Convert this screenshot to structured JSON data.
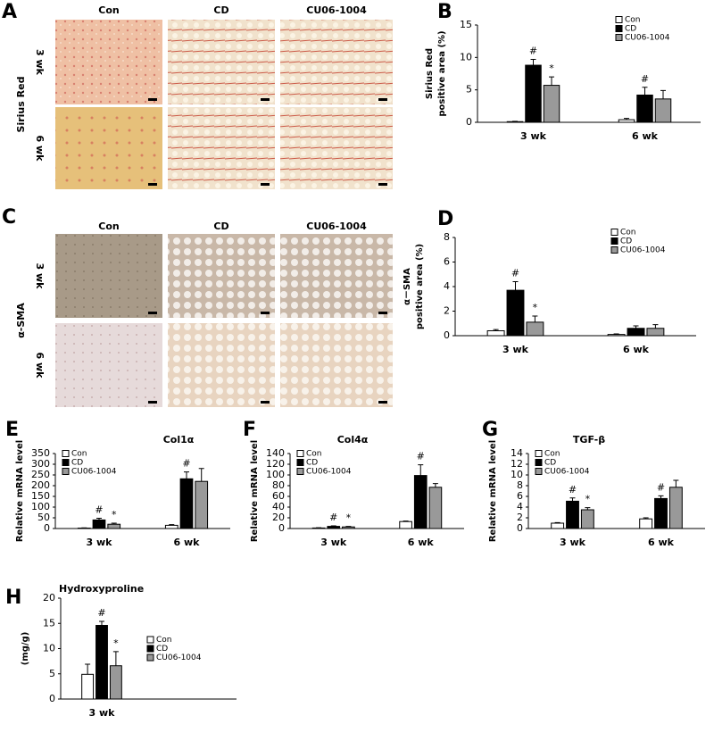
{
  "micrographs": [
    {
      "letter": "A",
      "stain": "Sirius Red",
      "columns": [
        "Con",
        "CD",
        "CU06-1004"
      ],
      "rows": [
        "3 wk",
        "6 wk"
      ]
    },
    {
      "letter": "C",
      "stain": "α-SMA",
      "columns": [
        "Con",
        "CD",
        "CU06-1004"
      ],
      "rows": [
        "3 wk",
        "6 wk"
      ]
    }
  ],
  "chart_data": [
    {
      "type": "bar",
      "letter": "B",
      "y_label": [
        "Sirius Red",
        "positive area (%)"
      ],
      "categories": [
        "3 wk",
        "6 wk"
      ],
      "ylim": [
        0,
        15
      ],
      "yticks": [
        0,
        5,
        10,
        15
      ],
      "legend": "upper right",
      "series": [
        {
          "name": "Con",
          "color": "#ffffff",
          "values": [
            0.1,
            0.4
          ],
          "errors": [
            0.05,
            0.2
          ],
          "markers": [
            null,
            null
          ]
        },
        {
          "name": "CD",
          "color": "#000000",
          "values": [
            8.8,
            4.2
          ],
          "errors": [
            0.9,
            1.2
          ],
          "markers": [
            "#",
            "#"
          ]
        },
        {
          "name": "CU06-1004",
          "color": "#999999",
          "values": [
            5.7,
            3.6
          ],
          "errors": [
            1.3,
            1.3
          ],
          "markers": [
            "*",
            null
          ]
        }
      ]
    },
    {
      "type": "bar",
      "letter": "D",
      "y_label": [
        "α－SMA",
        "positive area (%)"
      ],
      "categories": [
        "3 wk",
        "6 wk"
      ],
      "ylim": [
        0,
        8
      ],
      "yticks": [
        0,
        2,
        4,
        6,
        8
      ],
      "legend": "upper right",
      "series": [
        {
          "name": "Con",
          "color": "#ffffff",
          "values": [
            0.4,
            0.1
          ],
          "errors": [
            0.1,
            0.05
          ],
          "markers": [
            null,
            null
          ]
        },
        {
          "name": "CD",
          "color": "#000000",
          "values": [
            3.7,
            0.6
          ],
          "errors": [
            0.7,
            0.2
          ],
          "markers": [
            "#",
            null
          ]
        },
        {
          "name": "CU06-1004",
          "color": "#999999",
          "values": [
            1.1,
            0.6
          ],
          "errors": [
            0.5,
            0.3
          ],
          "markers": [
            "*",
            null
          ]
        }
      ]
    },
    {
      "type": "bar",
      "letter": "E",
      "title": "Col1α",
      "y_label": [
        "Relative mRNA level"
      ],
      "categories": [
        "3 wk",
        "6 wk"
      ],
      "ylim": [
        0,
        350
      ],
      "yticks": [
        0,
        50,
        100,
        150,
        200,
        250,
        300,
        350
      ],
      "legend": "upper left",
      "series": [
        {
          "name": "Con",
          "color": "#ffffff",
          "values": [
            2,
            15
          ],
          "errors": [
            1,
            3
          ],
          "markers": [
            null,
            null
          ]
        },
        {
          "name": "CD",
          "color": "#000000",
          "values": [
            40,
            232
          ],
          "errors": [
            8,
            32
          ],
          "markers": [
            "#",
            "#"
          ]
        },
        {
          "name": "CU06-1004",
          "color": "#999999",
          "values": [
            20,
            220
          ],
          "errors": [
            5,
            60
          ],
          "markers": [
            "*",
            null
          ]
        }
      ]
    },
    {
      "type": "bar",
      "letter": "F",
      "title": "Col4α",
      "y_label": [
        "Relative mRNA level"
      ],
      "categories": [
        "3 wk",
        "6 wk"
      ],
      "ylim": [
        0,
        140
      ],
      "yticks": [
        0,
        20,
        40,
        60,
        80,
        100,
        120,
        140
      ],
      "legend": "upper left",
      "series": [
        {
          "name": "Con",
          "color": "#ffffff",
          "values": [
            1,
            13
          ],
          "errors": [
            0.5,
            1
          ],
          "markers": [
            null,
            null
          ]
        },
        {
          "name": "CD",
          "color": "#000000",
          "values": [
            4,
            99
          ],
          "errors": [
            1,
            20
          ],
          "markers": [
            "#",
            "#"
          ]
        },
        {
          "name": "CU06-1004",
          "color": "#999999",
          "values": [
            3,
            77
          ],
          "errors": [
            1,
            7
          ],
          "markers": [
            "*",
            null
          ]
        }
      ]
    },
    {
      "type": "bar",
      "letter": "G",
      "title": "TGF-β",
      "y_label": [
        "Relative mRNA level"
      ],
      "categories": [
        "3 wk",
        "6 wk"
      ],
      "ylim": [
        0,
        14
      ],
      "yticks": [
        0,
        2,
        4,
        6,
        8,
        10,
        12,
        14
      ],
      "legend": "upper left",
      "series": [
        {
          "name": "Con",
          "color": "#ffffff",
          "values": [
            1.0,
            1.8
          ],
          "errors": [
            0.1,
            0.2
          ],
          "markers": [
            null,
            null
          ]
        },
        {
          "name": "CD",
          "color": "#000000",
          "values": [
            5.1,
            5.6
          ],
          "errors": [
            0.6,
            0.5
          ],
          "markers": [
            "#",
            "#"
          ]
        },
        {
          "name": "CU06-1004",
          "color": "#999999",
          "values": [
            3.5,
            7.7
          ],
          "errors": [
            0.4,
            1.3
          ],
          "markers": [
            "*",
            null
          ]
        }
      ]
    },
    {
      "type": "bar",
      "letter": "H",
      "title": "Hydroxyproline",
      "y_label": [
        "(mg/g)"
      ],
      "categories": [
        "3 wk"
      ],
      "ylim": [
        0,
        20
      ],
      "yticks": [
        0,
        5,
        10,
        15,
        20
      ],
      "legend": "center right",
      "series": [
        {
          "name": "Con",
          "color": "#ffffff",
          "values": [
            4.9
          ],
          "errors": [
            2.0
          ],
          "markers": [
            null
          ]
        },
        {
          "name": "CD",
          "color": "#000000",
          "values": [
            14.6
          ],
          "errors": [
            0.8
          ],
          "markers": [
            "#"
          ]
        },
        {
          "name": "CU06-1004",
          "color": "#999999",
          "values": [
            6.6
          ],
          "errors": [
            2.8
          ],
          "markers": [
            "*"
          ]
        }
      ]
    }
  ]
}
